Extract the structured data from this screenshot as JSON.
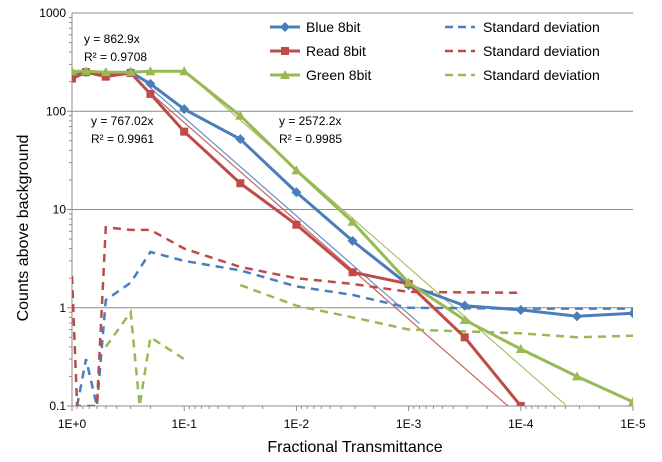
{
  "chart_data": {
    "type": "line",
    "xlabel": "Fractional Transmittance",
    "ylabel": "Counts above background",
    "xscale": "log",
    "yscale": "log",
    "x_reversed": true,
    "xlim": [
      1,
      1e-05
    ],
    "ylim": [
      0.1,
      1000
    ],
    "grid": "horizontal major",
    "legend_position": "top-right",
    "x_tick_labels": [
      {
        "value": 1,
        "label": "1E+0"
      },
      {
        "value": 0.1,
        "label": "1E-1"
      },
      {
        "value": 0.01,
        "label": "1E-2"
      },
      {
        "value": 0.001,
        "label": "1E-3"
      },
      {
        "value": 0.0001,
        "label": "1E-4"
      },
      {
        "value": 1e-05,
        "label": "1E-5"
      }
    ],
    "y_tick_labels": [
      {
        "value": 1000,
        "label": "1000"
      },
      {
        "value": 100,
        "label": "100"
      },
      {
        "value": 10,
        "label": "10"
      },
      {
        "value": 1,
        "label": "1"
      },
      {
        "value": 0.1,
        "label": "0.1"
      }
    ],
    "series": [
      {
        "name": "Blue 8bit",
        "color": "#4a7ebb",
        "marker": "diamond",
        "points": [
          [
            1,
            230
          ],
          [
            0.75,
            250
          ],
          [
            0.5,
            240
          ],
          [
            0.3,
            250
          ],
          [
            0.2,
            190
          ],
          [
            0.1,
            105
          ],
          [
            0.0316,
            52
          ],
          [
            0.01,
            15
          ],
          [
            0.00316,
            4.8
          ],
          [
            0.001,
            1.7
          ],
          [
            0.000316,
            1.05
          ],
          [
            0.0001,
            0.95
          ],
          [
            3.16e-05,
            0.82
          ],
          [
            1e-05,
            0.88
          ]
        ]
      },
      {
        "name": "Read 8bit",
        "color": "#be4b48",
        "marker": "square",
        "points": [
          [
            1,
            215
          ],
          [
            0.75,
            250
          ],
          [
            0.5,
            225
          ],
          [
            0.3,
            245
          ],
          [
            0.2,
            150
          ],
          [
            0.1,
            62
          ],
          [
            0.0316,
            18.5
          ],
          [
            0.01,
            7
          ],
          [
            0.00316,
            2.3
          ],
          [
            0.001,
            1.75
          ],
          [
            0.000316,
            0.5
          ],
          [
            0.0001,
            0.1
          ]
        ]
      },
      {
        "name": "Green 8bit",
        "color": "#98b954",
        "marker": "triangle",
        "points": [
          [
            1,
            255
          ],
          [
            0.75,
            255
          ],
          [
            0.5,
            250
          ],
          [
            0.3,
            250
          ],
          [
            0.2,
            255
          ],
          [
            0.1,
            255
          ],
          [
            0.0316,
            90
          ],
          [
            0.01,
            25
          ],
          [
            0.00316,
            7.5
          ],
          [
            0.001,
            1.8
          ],
          [
            0.000316,
            0.75
          ],
          [
            0.0001,
            0.38
          ],
          [
            3.16e-05,
            0.2
          ],
          [
            1e-05,
            0.11
          ]
        ]
      }
    ],
    "std_series": [
      {
        "name": "Standard deviation",
        "color": "#4a7ebb",
        "points": [
          [
            0.9,
            0.1
          ],
          [
            0.75,
            0.3
          ],
          [
            0.6,
            0.1
          ],
          [
            0.5,
            1.2
          ],
          [
            0.3,
            1.8
          ],
          [
            0.2,
            3.7
          ],
          [
            0.1,
            3.0
          ],
          [
            0.0316,
            2.4
          ],
          [
            0.01,
            1.65
          ],
          [
            0.00316,
            1.35
          ],
          [
            0.001,
            1.0
          ],
          [
            0.0001,
            0.98
          ],
          [
            1e-05,
            0.98
          ]
        ]
      },
      {
        "name": "Standard deviation",
        "color": "#be4b48",
        "points": [
          [
            1,
            2.1
          ],
          [
            0.9,
            0.1
          ],
          [
            0.6,
            0.1
          ],
          [
            0.5,
            6.6
          ],
          [
            0.3,
            6.2
          ],
          [
            0.2,
            6.2
          ],
          [
            0.1,
            4.0
          ],
          [
            0.0316,
            2.6
          ],
          [
            0.01,
            2.0
          ],
          [
            0.00316,
            1.75
          ],
          [
            0.001,
            1.45
          ],
          [
            0.0001,
            1.42
          ]
        ]
      },
      {
        "name": "Standard deviation",
        "color": "#98b954",
        "points": [
          [
            0.5,
            0.4
          ],
          [
            0.3,
            0.9
          ],
          [
            0.25,
            0.1
          ],
          [
            0.2,
            0.5
          ],
          [
            0.1,
            0.3
          ]
        ]
      },
      {
        "name": "Standard deviation",
        "color": "#98b954",
        "points": [
          [
            0.0316,
            1.7
          ],
          [
            0.01,
            1.05
          ],
          [
            0.00316,
            0.8
          ],
          [
            0.001,
            0.6
          ],
          [
            0.0001,
            0.55
          ],
          [
            3.16e-05,
            0.5
          ],
          [
            1e-05,
            0.52
          ]
        ]
      }
    ],
    "trendlines": [
      {
        "color": "#98b954",
        "equation": "y = 2572.2x",
        "r2": "R² = 0.9985",
        "slope": 2572.2,
        "x_range": [
          0.1,
          4e-05
        ]
      },
      {
        "color": "#4a7ebb",
        "equation": "y = 862.9x",
        "r2": "R² = 0.9708",
        "slope": 862.9,
        "x_range": [
          0.2,
          0.0008
        ]
      },
      {
        "color": "#be4b48",
        "equation": "y = 767.02x",
        "r2": "R² = 0.9961",
        "slope": 767.02,
        "x_range": [
          0.2,
          8e-05
        ]
      }
    ]
  }
}
